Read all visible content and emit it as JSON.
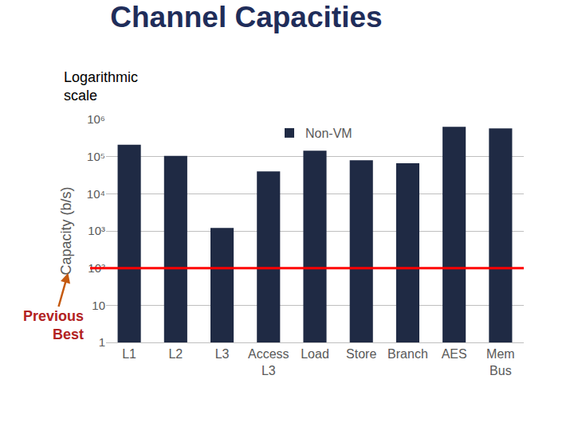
{
  "chart_data": {
    "type": "bar",
    "title": "Channel Capacities",
    "annotation": "Logarithmic scale",
    "y_label": "Capacity (b/s)",
    "categories": [
      "L1",
      "L2",
      "L3",
      "Access L3",
      "Load",
      "Store",
      "Branch",
      "AES",
      "Mem Bus"
    ],
    "series": [
      {
        "name": "Non-VM",
        "color": "#1f2a44",
        "values": [
          210000,
          105000,
          1200,
          40000,
          145000,
          80000,
          66000,
          630000,
          575000
        ]
      }
    ],
    "ylim": [
      1,
      1000000
    ],
    "yticks": [
      1,
      10,
      {
        "value": 100,
        "label": "10²"
      },
      {
        "value": 1000,
        "label": "10³"
      },
      {
        "value": 10000,
        "label": "10⁴"
      },
      {
        "value": 100000,
        "label": "10⁵"
      },
      {
        "value": 1000000,
        "label": "10⁶"
      }
    ],
    "log": "y",
    "grid": true,
    "legend": "top",
    "reference_line": {
      "value": 100,
      "label": "Previous Best",
      "color": "#ff0000"
    }
  }
}
